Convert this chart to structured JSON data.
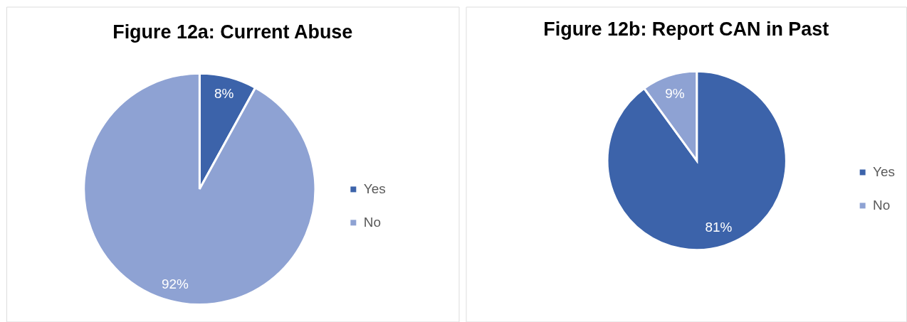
{
  "chart_data": [
    {
      "type": "pie",
      "title": "Figure 12a: Current Abuse",
      "categories": [
        "Yes",
        "No"
      ],
      "values": [
        8,
        92
      ],
      "colors": [
        "#3c63aa",
        "#8ea2d3"
      ],
      "value_labels": [
        "8%",
        "92%"
      ],
      "legend": "right"
    },
    {
      "type": "pie",
      "title": "Figure 12b: Report CAN in Past",
      "categories": [
        "Yes",
        "No"
      ],
      "values": [
        81,
        9
      ],
      "colors": [
        "#3c63aa",
        "#8ea2d3"
      ],
      "value_labels": [
        "81%",
        "9%"
      ],
      "legend": "right"
    }
  ]
}
